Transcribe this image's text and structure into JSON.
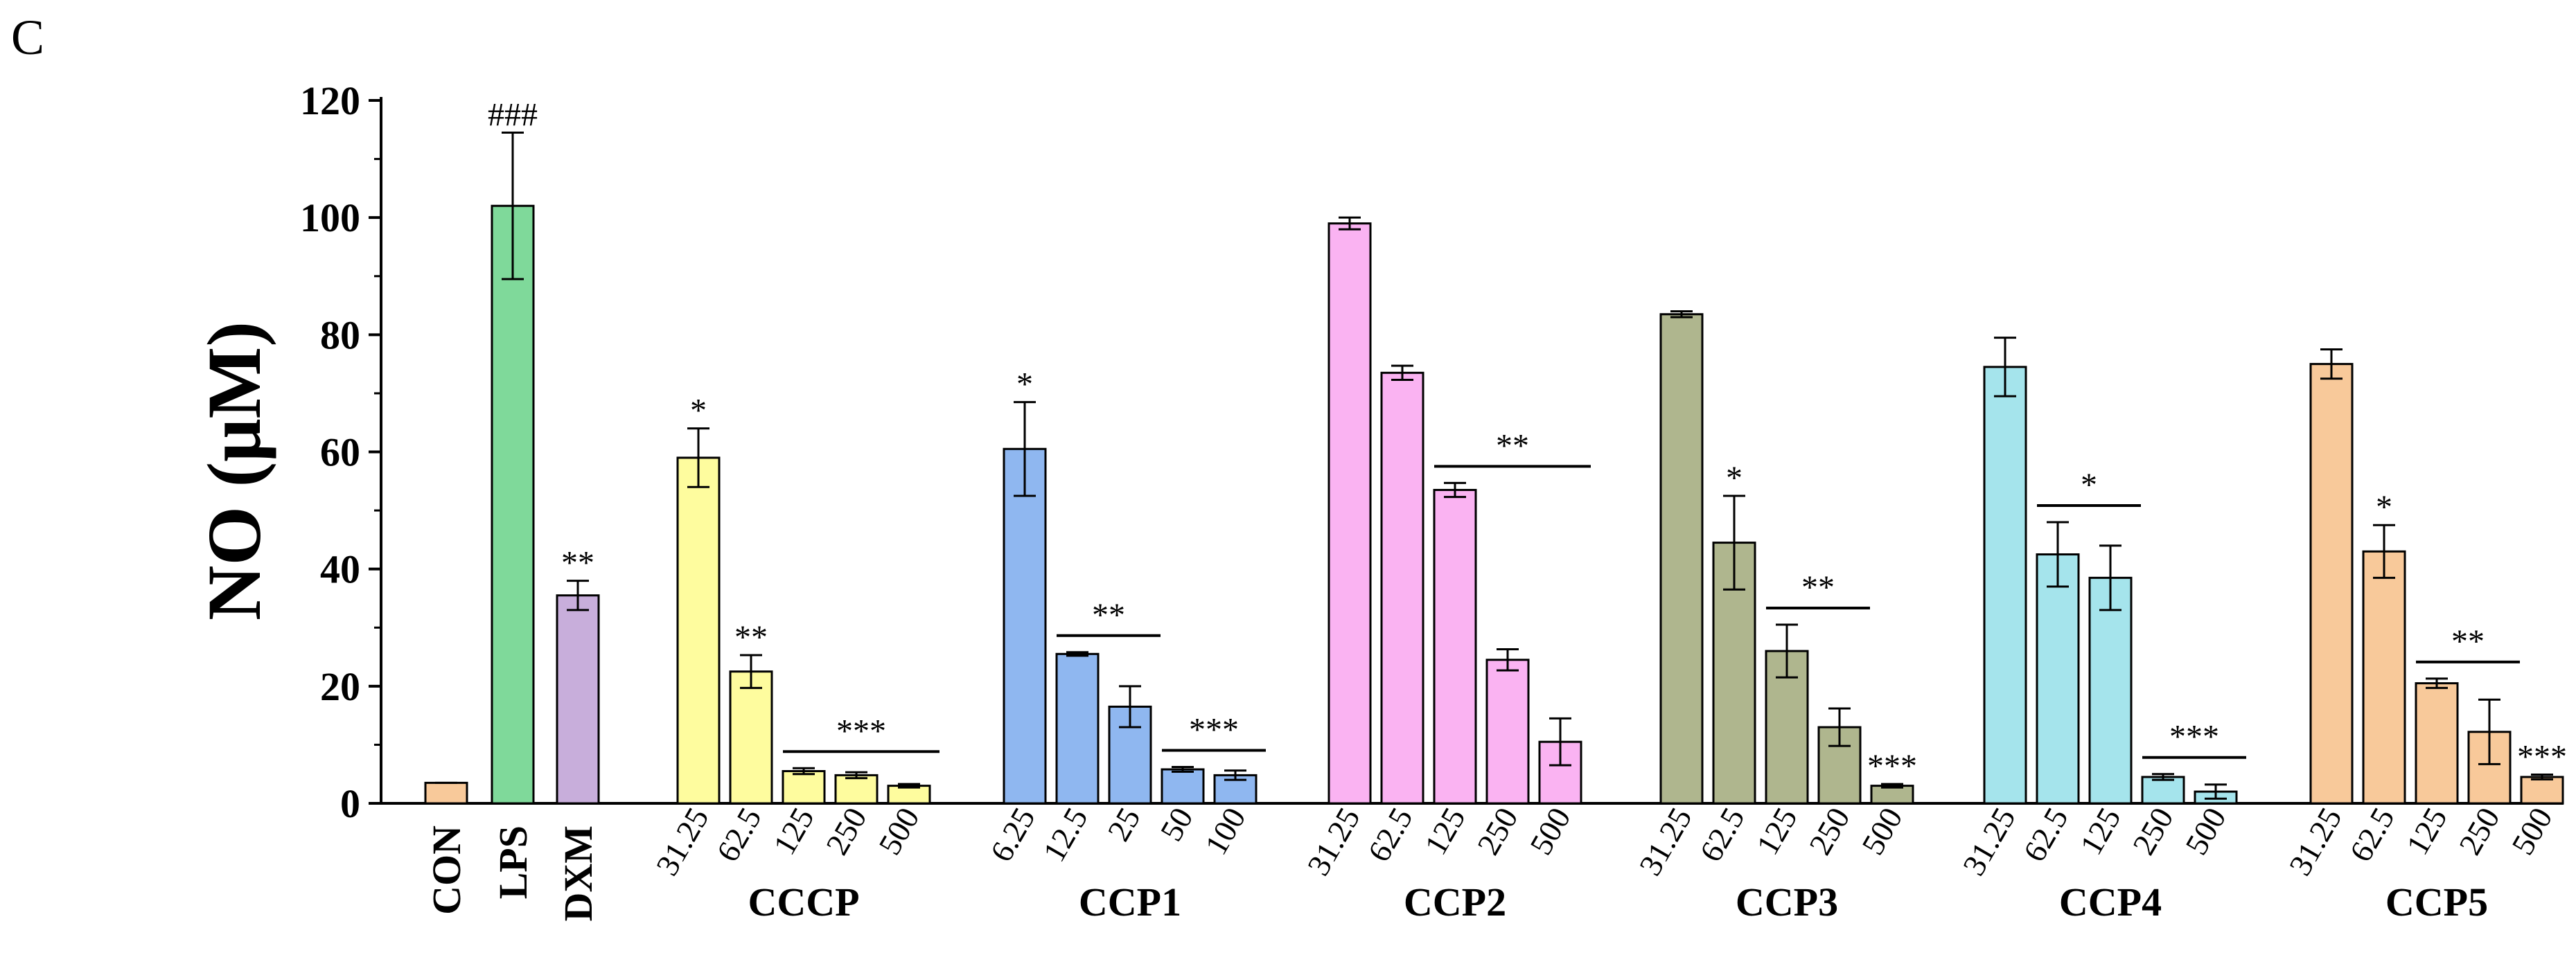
{
  "chart_data": {
    "type": "bar",
    "panel_label": "C",
    "ylabel": "NO (μM)",
    "ylim": [
      0,
      120
    ],
    "yticks": [
      "0",
      "20",
      "40",
      "60",
      "80",
      "100",
      "120"
    ],
    "controls": [
      {
        "label": "CON",
        "value": 3.5,
        "error": 0,
        "color": "#F8C99A",
        "sig": ""
      },
      {
        "label": "LPS",
        "value": 102,
        "error": 12.5,
        "color": "#7FD99A",
        "sig": "###"
      },
      {
        "label": "DXM",
        "value": 35.5,
        "error": 2.5,
        "color": "#C8AEDB",
        "sig": "**"
      }
    ],
    "groups": [
      {
        "name": "CCCP",
        "color": "#FEFC9E",
        "concentrations": [
          "31.25",
          "62.5",
          "125",
          "250",
          "500"
        ],
        "values": [
          59,
          22.5,
          5.5,
          4.8,
          3
        ],
        "errors": [
          5,
          2.8,
          0.5,
          0.5,
          0.3
        ],
        "stars": [
          "*",
          "**",
          "",
          "",
          ""
        ],
        "bracket": {
          "label": "***",
          "from": 2,
          "to": 4
        }
      },
      {
        "name": "CCP1",
        "color": "#8FB7F0",
        "concentrations": [
          "6.25",
          "12.5",
          "25",
          "50",
          "100"
        ],
        "values": [
          60.5,
          25.5,
          16.5,
          5.8,
          4.8
        ],
        "errors": [
          8,
          0.3,
          3.5,
          0.4,
          0.8
        ],
        "stars": [
          "*",
          "",
          "",
          "",
          ""
        ],
        "brackets": [
          {
            "label": "**",
            "from": 1,
            "to": 2
          },
          {
            "label": "***",
            "from": 3,
            "to": 4
          }
        ]
      },
      {
        "name": "CCP2",
        "color": "#FAB3F2",
        "concentrations": [
          "31.25",
          "62.5",
          "125",
          "250",
          "500"
        ],
        "values": [
          99,
          73.5,
          53.5,
          24.5,
          10.5
        ],
        "errors": [
          1,
          1.2,
          1.2,
          1.8,
          4
        ],
        "stars": [
          "",
          "",
          "",
          "",
          ""
        ],
        "brackets": [
          {
            "label": "**",
            "from": 2,
            "to": 4
          }
        ]
      },
      {
        "name": "CCP3",
        "color": "#AFB68E",
        "concentrations": [
          "31.25",
          "62.5",
          "125",
          "250",
          "500"
        ],
        "values": [
          83.5,
          44.5,
          26,
          13,
          3
        ],
        "errors": [
          0.5,
          8,
          4.5,
          3.2,
          0.3
        ],
        "stars": [
          "",
          "*",
          "",
          "",
          "***"
        ],
        "brackets": [
          {
            "label": "**",
            "from": 2,
            "to": 3
          }
        ]
      },
      {
        "name": "CCP4",
        "color": "#A5E4EC",
        "concentrations": [
          "31.25",
          "62.5",
          "125",
          "250",
          "500"
        ],
        "values": [
          74.5,
          42.5,
          38.5,
          4.5,
          2
        ],
        "errors": [
          5,
          5.5,
          5.5,
          0.5,
          1.2
        ],
        "stars": [
          "",
          "",
          "",
          "",
          ""
        ],
        "brackets": [
          {
            "label": "*",
            "from": 1,
            "to": 2
          },
          {
            "label": "***",
            "from": 3,
            "to": 4
          }
        ]
      },
      {
        "name": "CCP5",
        "color": "#F8C99A",
        "concentrations": [
          "31.25",
          "62.5",
          "125",
          "250",
          "500"
        ],
        "values": [
          75,
          43,
          20.5,
          12.2,
          4.5
        ],
        "errors": [
          2.5,
          4.5,
          0.8,
          5.5,
          0.4
        ],
        "stars": [
          "",
          "*",
          "",
          "",
          "***"
        ],
        "brackets": [
          {
            "label": "**",
            "from": 2,
            "to": 3
          }
        ]
      }
    ]
  }
}
